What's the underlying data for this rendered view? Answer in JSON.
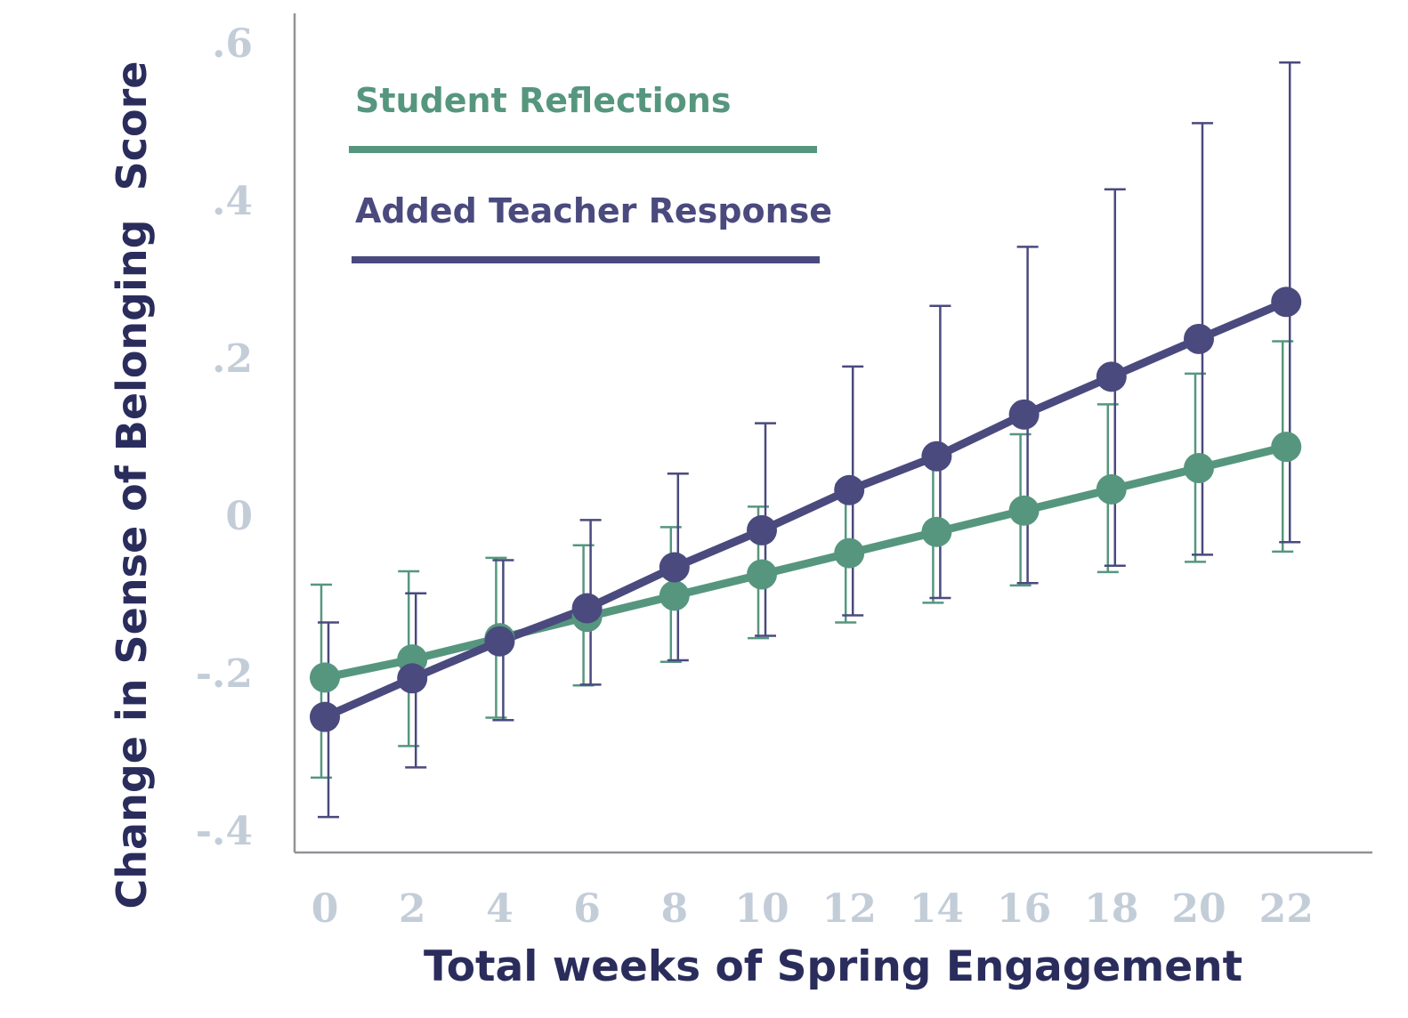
{
  "chart_data": {
    "type": "line",
    "title": "",
    "xlabel": "Total weeks of Spring Engagement",
    "ylabel": "Change in Sense of Belonging  Score",
    "x": [
      0,
      2,
      4,
      6,
      8,
      10,
      12,
      14,
      16,
      18,
      20,
      22
    ],
    "x_tick_labels": [
      "0",
      "2",
      "4",
      "6",
      "8",
      "10",
      "12",
      "14",
      "16",
      "18",
      "20",
      "22"
    ],
    "y_ticks": [
      -0.4,
      -0.2,
      0,
      0.2,
      0.4,
      0.6
    ],
    "y_tick_labels": [
      "-.4",
      "-.2",
      "0",
      ".2",
      ".4",
      ".6"
    ],
    "xlim": [
      0,
      22
    ],
    "ylim": [
      -0.42,
      0.62
    ],
    "grid": false,
    "legend_position": "top-left",
    "series": [
      {
        "name": "Student Reflections",
        "color": "#56967f",
        "values": [
          -0.205,
          -0.182,
          -0.155,
          -0.128,
          -0.101,
          -0.074,
          -0.047,
          -0.02,
          0.007,
          0.034,
          0.061,
          0.088
        ],
        "err_low": [
          -0.332,
          -0.292,
          -0.256,
          -0.215,
          -0.185,
          -0.155,
          -0.135,
          -0.11,
          -0.088,
          -0.071,
          -0.058,
          -0.045
        ],
        "err_high": [
          -0.087,
          -0.07,
          -0.053,
          -0.037,
          -0.014,
          0.012,
          0.04,
          0.066,
          0.104,
          0.142,
          0.181,
          0.222
        ]
      },
      {
        "name": "Added Teacher Response",
        "color": "#4a4a7e",
        "values": [
          -0.255,
          -0.206,
          -0.159,
          -0.117,
          -0.065,
          -0.018,
          0.033,
          0.076,
          0.129,
          0.177,
          0.225,
          0.272
        ],
        "err_low": [
          -0.382,
          -0.319,
          -0.259,
          -0.214,
          -0.183,
          -0.152,
          -0.126,
          -0.104,
          -0.085,
          -0.063,
          -0.049,
          -0.033
        ],
        "err_high": [
          -0.135,
          -0.098,
          -0.056,
          -0.005,
          0.054,
          0.118,
          0.19,
          0.267,
          0.342,
          0.415,
          0.499,
          0.576
        ]
      }
    ]
  }
}
